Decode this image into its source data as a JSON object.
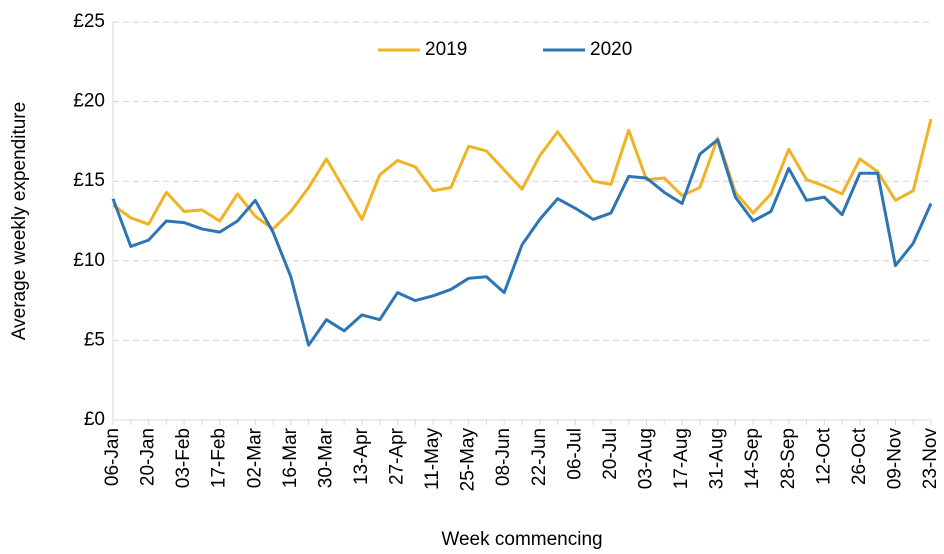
{
  "chart_data": {
    "type": "line",
    "x_label": "Week commencing",
    "y_label": "Average weekly expenditure",
    "categories": [
      "06-Jan",
      null,
      "20-Jan",
      null,
      "03-Feb",
      null,
      "17-Feb",
      null,
      "02-Mar",
      null,
      "16-Mar",
      null,
      "30-Mar",
      null,
      "13-Apr",
      null,
      "27-Apr",
      null,
      "11-May",
      null,
      "25-May",
      null,
      "08-Jun",
      null,
      "22-Jun",
      null,
      "06-Jul",
      null,
      "20-Jul",
      null,
      "03-Aug",
      null,
      "17-Aug",
      null,
      "31-Aug",
      null,
      "14-Sep",
      null,
      "28-Sep",
      null,
      "12-Oct",
      null,
      "26-Oct",
      null,
      "09-Nov",
      null,
      "23-Nov"
    ],
    "series": [
      {
        "name": "2019",
        "color": "#f0b323",
        "values": [
          13.5,
          12.7,
          12.3,
          14.3,
          13.1,
          13.2,
          12.5,
          14.2,
          12.8,
          12.0,
          13.1,
          14.6,
          16.4,
          14.5,
          12.6,
          15.4,
          16.3,
          15.9,
          14.4,
          14.6,
          17.2,
          16.9,
          15.7,
          14.5,
          16.6,
          18.1,
          16.6,
          15.0,
          14.8,
          18.2,
          15.1,
          15.2,
          14.1,
          14.6,
          17.7,
          14.3,
          13.0,
          14.2,
          17.0,
          15.1,
          14.7,
          14.2,
          16.4,
          15.6,
          13.8,
          14.4,
          18.9
        ]
      },
      {
        "name": "2020",
        "color": "#2e75b6",
        "values": [
          13.9,
          10.9,
          11.3,
          12.5,
          12.4,
          12.0,
          11.8,
          12.5,
          13.8,
          11.8,
          9.0,
          4.7,
          6.3,
          5.6,
          6.6,
          6.3,
          8.0,
          7.5,
          7.8,
          8.2,
          8.9,
          9.0,
          8.0,
          11.0,
          12.6,
          13.9,
          13.3,
          12.6,
          13.0,
          15.3,
          15.2,
          14.3,
          13.6,
          16.7,
          17.6,
          14.0,
          12.5,
          13.1,
          15.8,
          13.8,
          14.0,
          12.9,
          15.5,
          15.5,
          9.7,
          11.1,
          13.6
        ]
      }
    ],
    "ylim": [
      0,
      25
    ],
    "yticks": [
      {
        "value": 0,
        "label": "£0"
      },
      {
        "value": 5,
        "label": "£5"
      },
      {
        "value": 10,
        "label": "£10"
      },
      {
        "value": 15,
        "label": "£15"
      },
      {
        "value": 20,
        "label": "£20"
      },
      {
        "value": 25,
        "label": "£25"
      }
    ],
    "grid": true,
    "legend": "top"
  }
}
